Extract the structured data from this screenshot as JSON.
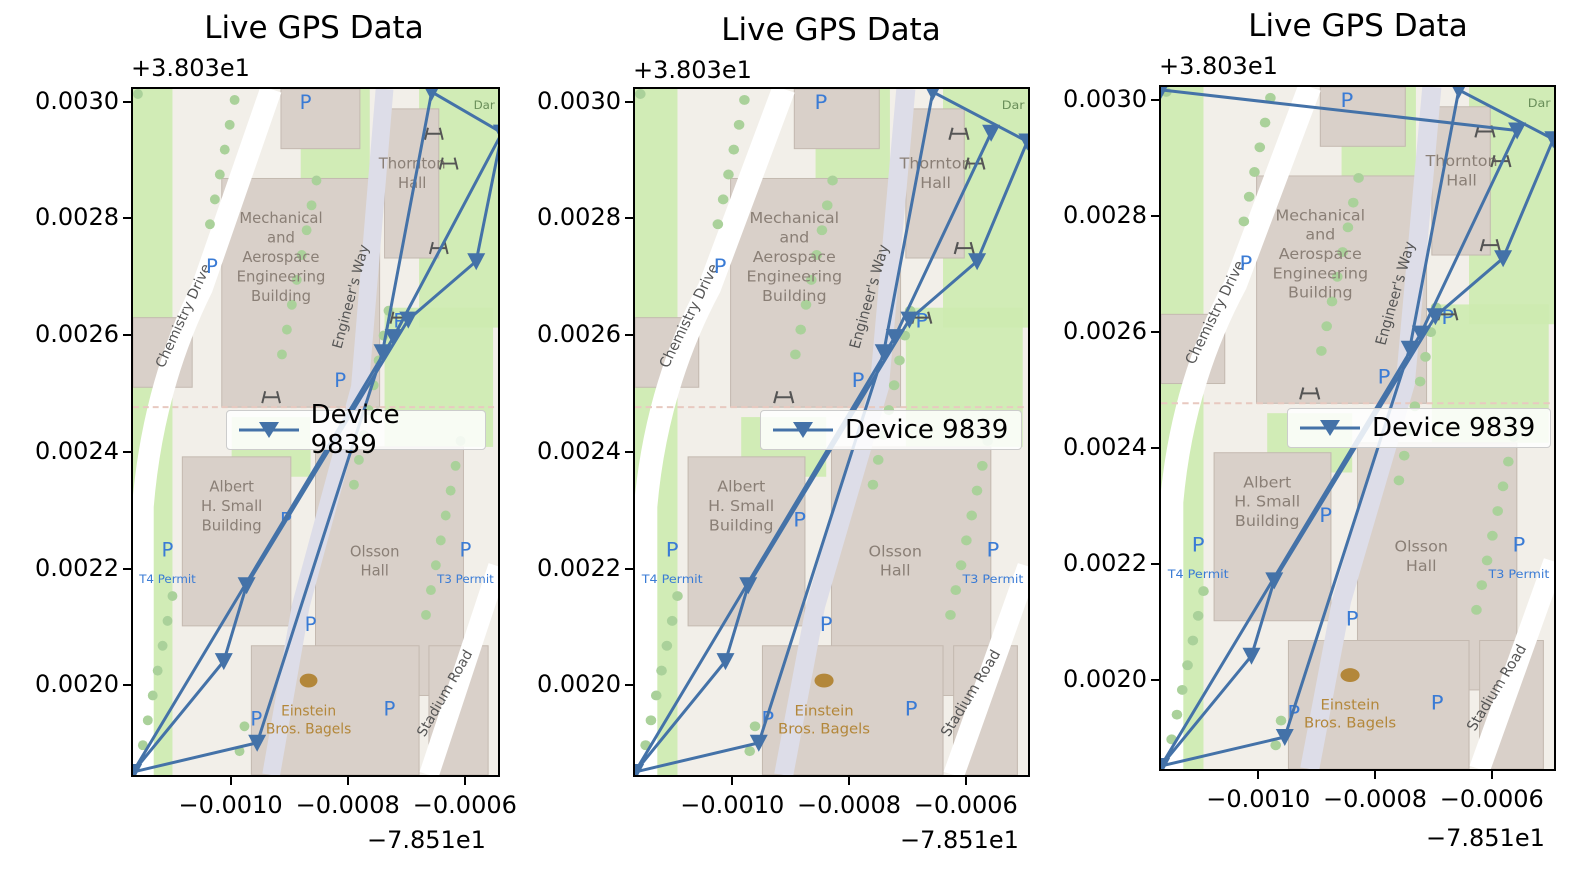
{
  "colors": {
    "line": "#4472a8",
    "map_bg": "#f2efe9",
    "building": "#d9d0c9",
    "park": "#cdebb0",
    "path": "#dddde8",
    "road": "#ffffff",
    "poi_text": "#8a7f76",
    "parking": "#3a7bd5",
    "bagel": "#b3873a"
  },
  "icons": [
    "parking-icon",
    "bicycle-icon",
    "picnic-table-icon",
    "bagel-icon"
  ],
  "map_labels": {
    "mae": [
      "Mechanical",
      "and",
      "Aerospace",
      "Engineering",
      "Building"
    ],
    "thornton": [
      "Thornton",
      "Hall"
    ],
    "albert": [
      "Albert",
      "H. Small",
      "Building"
    ],
    "olsson": [
      "Olsson",
      "Hall"
    ],
    "einstein": [
      "Einstein",
      "Bros. Bagels"
    ],
    "chemistry_drive": "Chemistry Drive",
    "engineers_way": "Engineer's Way",
    "stadium_road": "Stadium Road",
    "t4_permit": "T4 Permit",
    "t3_permit": "T3 Permit",
    "dar": "Dar",
    "parking_letter": "P"
  },
  "chart_data": [
    {
      "type": "line",
      "title": "Live GPS Data",
      "y_offset_label": "+3.803e1",
      "x_offset_label": "−7.851e1",
      "xlim": [
        -0.00117,
        -0.00054
      ],
      "ylim": [
        0.001843,
        0.003025
      ],
      "xticks": [
        -0.001,
        -0.0008,
        -0.0006
      ],
      "xtick_labels": [
        "−0.0010",
        "−0.0008",
        "−0.0006"
      ],
      "yticks": [
        0.002,
        0.0022,
        0.0024,
        0.0026,
        0.0028,
        0.003
      ],
      "ytick_labels": [
        "0.0020",
        "0.0022",
        "0.0024",
        "0.0026",
        "0.0028",
        "0.0030"
      ],
      "legend": "right-center",
      "series": [
        {
          "name": "Device 9839",
          "marker": "triangle-down",
          "x": [
            -0.00117,
            -0.001015,
            -0.000976,
            -0.0007,
            -0.000584,
            -0.00054,
            -0.00066,
            -0.000744,
            -0.000958,
            -0.00117,
            -0.000725,
            -0.00054
          ],
          "y": [
            0.001855,
            0.002045,
            0.002175,
            0.00263,
            0.00273,
            0.00295,
            0.00302,
            0.002574,
            0.001905,
            0.001855,
            0.0026,
            0.00295
          ]
        }
      ]
    },
    {
      "type": "line",
      "title": "Live GPS Data",
      "y_offset_label": "+3.803e1",
      "x_offset_label": "−7.851e1",
      "xlim": [
        -0.00117,
        -0.00049
      ],
      "ylim": [
        0.001843,
        0.003025
      ],
      "xticks": [
        -0.001,
        -0.0008,
        -0.0006
      ],
      "xtick_labels": [
        "−0.0010",
        "−0.0008",
        "−0.0006"
      ],
      "yticks": [
        0.002,
        0.0022,
        0.0024,
        0.0026,
        0.0028,
        0.003
      ],
      "ytick_labels": [
        "0.0020",
        "0.0022",
        "0.0024",
        "0.0026",
        "0.0028",
        "0.0030"
      ],
      "legend": "right-center",
      "series": [
        {
          "name": "Device 9839",
          "marker": "triangle-down",
          "x": [
            -0.00117,
            -0.001015,
            -0.000976,
            -0.0007,
            -0.000584,
            -0.000498,
            -0.00066,
            -0.000744,
            -0.000958,
            -0.00117,
            -0.000725,
            -0.00056
          ],
          "y": [
            0.001855,
            0.002045,
            0.002175,
            0.00263,
            0.00273,
            0.002935,
            0.00302,
            0.002574,
            0.001905,
            0.001855,
            0.0026,
            0.00295
          ]
        }
      ]
    },
    {
      "type": "line",
      "title": "Live GPS Data",
      "y_offset_label": "+3.803e1",
      "x_offset_label": "−7.851e1",
      "xlim": [
        -0.00117,
        -0.00049
      ],
      "ylim": [
        0.001843,
        0.003025
      ],
      "xticks": [
        -0.001,
        -0.0008,
        -0.0006
      ],
      "xtick_labels": [
        "−0.0010",
        "−0.0008",
        "−0.0006"
      ],
      "yticks": [
        0.002,
        0.0022,
        0.0024,
        0.0026,
        0.0028,
        0.003
      ],
      "ytick_labels": [
        "0.0020",
        "0.0022",
        "0.0024",
        "0.0026",
        "0.0028",
        "0.0030"
      ],
      "legend": "right-center",
      "series": [
        {
          "name": "Device 9839",
          "marker": "triangle-down",
          "x": [
            -0.00117,
            -0.001015,
            -0.000976,
            -0.0007,
            -0.000584,
            -0.000498,
            -0.00066,
            -0.000744,
            -0.000958,
            -0.00117,
            -0.000725,
            -0.00056,
            -0.00117
          ],
          "y": [
            0.001855,
            0.002045,
            0.002175,
            0.00263,
            0.00273,
            0.002935,
            0.00302,
            0.002574,
            0.001905,
            0.001855,
            0.0026,
            0.00295,
            0.00302
          ]
        }
      ]
    }
  ]
}
